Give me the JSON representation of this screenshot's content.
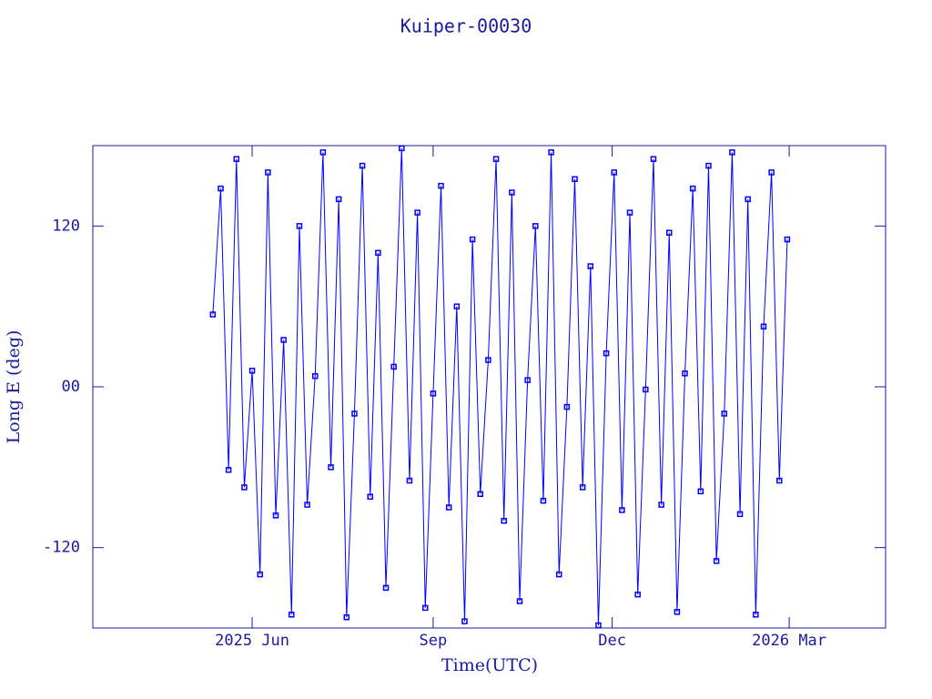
{
  "chart_data": {
    "type": "line",
    "title": "Kuiper-00030",
    "x_label": "Time(UTC)",
    "y_label": "Long E (deg)",
    "xlim": [
      "2025-03-12",
      "2026-04-19"
    ],
    "xticks": [
      {
        "value": "2025-06-01",
        "label": "2025 Jun"
      },
      {
        "value": "2025-09-01",
        "label": "Sep"
      },
      {
        "value": "2025-12-01",
        "label": "Dec"
      },
      {
        "value": "2026-03-01",
        "label": "2026 Mar"
      }
    ],
    "ylim": [
      -180,
      180
    ],
    "yticks": [
      120,
      {
        "value": 0,
        "label": "00"
      },
      -120
    ],
    "grid": false,
    "series": [
      {
        "color": "#0000ff",
        "x": [
          "2025-05-12",
          "2025-05-16",
          "2025-05-20",
          "2025-05-24",
          "2025-05-28",
          "2025-06-01",
          "2025-06-05",
          "2025-06-09",
          "2025-06-13",
          "2025-06-17",
          "2025-06-21",
          "2025-06-25",
          "2025-06-29",
          "2025-07-03",
          "2025-07-07",
          "2025-07-11",
          "2025-07-15",
          "2025-07-19",
          "2025-07-23",
          "2025-07-27",
          "2025-07-31",
          "2025-08-04",
          "2025-08-08",
          "2025-08-12",
          "2025-08-16",
          "2025-08-20",
          "2025-08-24",
          "2025-08-28",
          "2025-09-01",
          "2025-09-05",
          "2025-09-09",
          "2025-09-13",
          "2025-09-17",
          "2025-09-21",
          "2025-09-25",
          "2025-09-29",
          "2025-10-03",
          "2025-10-07",
          "2025-10-11",
          "2025-10-15",
          "2025-10-19",
          "2025-10-23",
          "2025-10-27",
          "2025-10-31",
          "2025-11-04",
          "2025-11-08",
          "2025-11-12",
          "2025-11-16",
          "2025-11-20",
          "2025-11-24",
          "2025-11-28",
          "2025-12-02",
          "2025-12-06",
          "2025-12-10",
          "2025-12-14",
          "2025-12-18",
          "2025-12-22",
          "2025-12-26",
          "2025-12-30",
          "2026-01-03",
          "2026-01-07",
          "2026-01-11",
          "2026-01-15",
          "2026-01-19",
          "2026-01-23",
          "2026-01-27",
          "2026-01-31",
          "2026-02-04",
          "2026-02-08",
          "2026-02-12",
          "2026-02-16",
          "2026-02-20",
          "2026-02-24",
          "2026-02-28"
        ],
        "values": [
          54,
          148,
          -62,
          170,
          -75,
          12,
          -140,
          160,
          -96,
          35,
          -170,
          120,
          -88,
          8,
          175,
          -60,
          140,
          -172,
          -20,
          165,
          -82,
          100,
          -150,
          15,
          178,
          -70,
          130,
          -165,
          -5,
          150,
          -90,
          60,
          -175,
          110,
          -80,
          20,
          170,
          -100,
          145,
          -160,
          5,
          120,
          -85,
          175,
          -140,
          -15,
          155,
          -75,
          90,
          -178,
          25,
          160,
          -92,
          130,
          -155,
          -2,
          170,
          -88,
          115,
          -168,
          10,
          148,
          -78,
          165,
          -130,
          -20,
          175,
          -95,
          140,
          -170,
          45,
          160,
          -70,
          110
        ]
      }
    ]
  }
}
